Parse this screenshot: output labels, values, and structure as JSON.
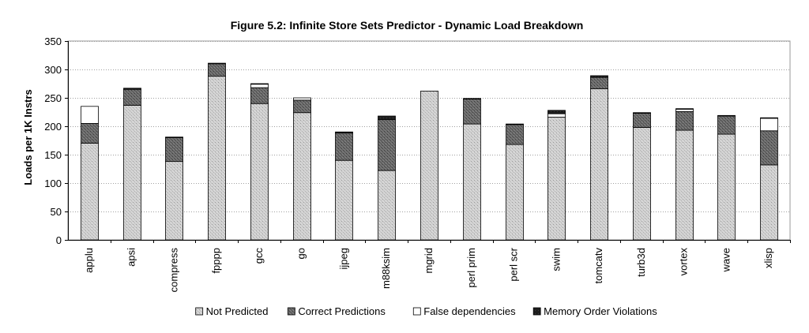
{
  "chart_data": {
    "type": "bar",
    "stacked": true,
    "title": "Figure 5.2: Infinite Store Sets Predictor - Dynamic Load Breakdown",
    "ylabel": "Loads per 1K Instrs",
    "xlabel": "",
    "ylim": [
      0,
      350
    ],
    "yticks": [
      0,
      50,
      100,
      150,
      200,
      250,
      300,
      350
    ],
    "grid": true,
    "legend_position": "bottom",
    "categories": [
      "applu",
      "apsi",
      "compress",
      "fpppp",
      "gcc",
      "go",
      "ijpeg",
      "m88ksim",
      "mgrid",
      "perl prim",
      "perl scr",
      "swim",
      "tomcatv",
      "turb3d",
      "vortex",
      "wave",
      "xlisp"
    ],
    "series": [
      {
        "name": "Not Predicted",
        "color": "#d0d0d0",
        "values": [
          170,
          237,
          138,
          288,
          240,
          224,
          140,
          122,
          262,
          204,
          168,
          216,
          266,
          198,
          193,
          186,
          132
        ]
      },
      {
        "name": "Correct Predictions",
        "color": "#6e6e6e",
        "values": [
          35,
          28,
          42,
          22,
          28,
          22,
          48,
          90,
          0,
          44,
          35,
          0,
          20,
          25,
          33,
          32,
          60
        ]
      },
      {
        "name": "False dependencies",
        "color": "#ffffff",
        "values": [
          30,
          0,
          0,
          0,
          6,
          4,
          0,
          0,
          0,
          0,
          0,
          6,
          0,
          0,
          4,
          0,
          22
        ]
      },
      {
        "name": "Memory Order Violations",
        "color": "#1a1a1a",
        "values": [
          0,
          2,
          1,
          1,
          1,
          0,
          2,
          6,
          0,
          1,
          1,
          6,
          3,
          1,
          1,
          1,
          1
        ]
      }
    ]
  }
}
